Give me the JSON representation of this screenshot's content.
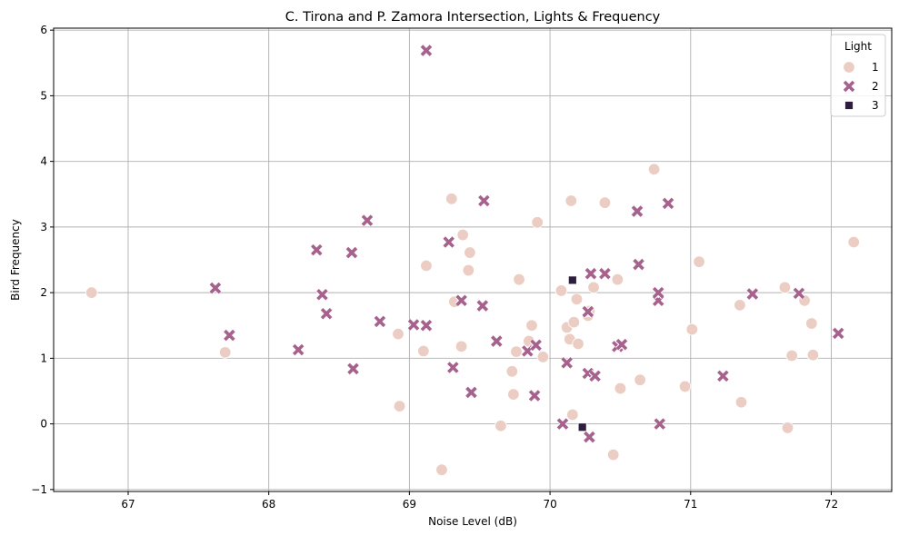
{
  "chart_data": {
    "type": "scatter",
    "title": "C. Tirona and P. Zamora Intersection, Lights & Frequency",
    "xlabel": "Noise Level (dB)",
    "ylabel": "Bird Frequency",
    "xlim": [
      66.47,
      72.43
    ],
    "ylim": [
      -1.03,
      6.03
    ],
    "xticks": [
      "67",
      "68",
      "69",
      "70",
      "71",
      "72"
    ],
    "yticks": [
      "−1",
      "0",
      "1",
      "2",
      "3",
      "4",
      "5",
      "6"
    ],
    "grid": true,
    "legend": {
      "title": "Light",
      "placement": "top-right"
    },
    "series": [
      {
        "name": "1",
        "marker": "circle",
        "color": "#ebcdc3",
        "x": [
          66.74,
          67.69,
          68.92,
          68.93,
          69.1,
          69.12,
          69.23,
          69.3,
          69.32,
          69.37,
          69.38,
          69.42,
          69.43,
          69.65,
          69.73,
          69.74,
          69.76,
          69.78,
          69.85,
          69.87,
          69.91,
          69.95,
          70.08,
          70.12,
          70.14,
          70.15,
          70.16,
          70.17,
          70.19,
          70.2,
          70.27,
          70.28,
          70.31,
          70.39,
          70.45,
          70.48,
          70.5,
          70.64,
          70.74,
          70.96,
          71.01,
          71.06,
          71.35,
          71.36,
          71.67,
          71.69,
          71.72,
          71.81,
          71.86,
          71.87,
          72.16
        ],
        "y": [
          2.0,
          1.09,
          1.37,
          0.27,
          1.11,
          2.41,
          -0.7,
          3.43,
          1.86,
          1.18,
          2.88,
          2.34,
          2.61,
          -0.03,
          0.8,
          0.45,
          1.1,
          2.2,
          1.26,
          1.5,
          3.07,
          1.02,
          2.03,
          1.47,
          1.29,
          3.4,
          0.14,
          1.55,
          1.9,
          1.22,
          1.65,
          1.72,
          2.08,
          3.37,
          -0.47,
          2.2,
          0.54,
          0.67,
          3.88,
          0.57,
          1.44,
          2.47,
          1.81,
          0.33,
          2.08,
          -0.06,
          1.04,
          1.88,
          1.53,
          1.05,
          2.77
        ]
      },
      {
        "name": "2",
        "marker": "x",
        "color": "#a6628d",
        "x": [
          67.62,
          67.72,
          68.21,
          68.34,
          68.38,
          68.41,
          68.59,
          68.6,
          68.7,
          68.79,
          69.03,
          69.12,
          69.12,
          69.28,
          69.31,
          69.37,
          69.44,
          69.52,
          69.53,
          69.62,
          69.84,
          69.89,
          69.9,
          70.09,
          70.12,
          70.27,
          70.27,
          70.28,
          70.29,
          70.32,
          70.39,
          70.48,
          70.51,
          70.62,
          70.63,
          70.77,
          70.77,
          70.78,
          70.84,
          71.23,
          71.44,
          71.77,
          72.05
        ],
        "y": [
          2.07,
          1.35,
          1.13,
          2.65,
          1.97,
          1.68,
          2.61,
          0.84,
          3.1,
          1.56,
          1.51,
          1.5,
          5.69,
          2.77,
          0.86,
          1.88,
          0.48,
          1.8,
          3.4,
          1.26,
          1.11,
          0.43,
          1.2,
          0.0,
          0.93,
          0.77,
          1.71,
          -0.2,
          2.29,
          0.73,
          2.29,
          1.18,
          1.21,
          3.24,
          2.43,
          1.88,
          2.0,
          0.0,
          3.36,
          0.73,
          1.98,
          1.99,
          1.38
        ]
      },
      {
        "name": "3",
        "marker": "square",
        "color": "#2d1e3e",
        "x": [
          70.16,
          70.23
        ],
        "y": [
          2.19,
          -0.05
        ]
      }
    ]
  }
}
